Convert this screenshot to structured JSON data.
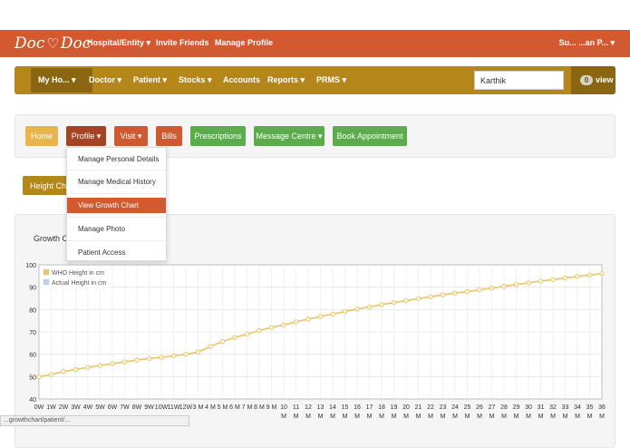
{
  "brand": {
    "logo_text": "DocDoc",
    "logo_left": "Doc",
    "logo_right": "Doc",
    "heart": "♡"
  },
  "topbar": {
    "links": [
      {
        "label": "Hospital/Entity ▾"
      },
      {
        "label": "Invite Friends"
      },
      {
        "label": "Manage Profile"
      }
    ],
    "user_label": "Su... ...an P... ▾",
    "color": "#d35a30"
  },
  "navbar": {
    "items": [
      {
        "label": "My Ho... ▾"
      },
      {
        "label": "Doctor ▾"
      },
      {
        "label": "Patient ▾"
      },
      {
        "label": "Stocks ▾"
      },
      {
        "label": "Accounts"
      },
      {
        "label": "Reports ▾"
      },
      {
        "label": "PRMS ▾"
      }
    ],
    "search_value": "Karthik",
    "badge_count": "0",
    "view_label": "view",
    "color": "#b5871b"
  },
  "patient_toolbar": {
    "buttons": [
      {
        "label": "Home"
      },
      {
        "label": "Profile ▾"
      },
      {
        "label": "Visit ▾"
      },
      {
        "label": "Bills"
      },
      {
        "label": "Prescriptions"
      },
      {
        "label": "Message Centre ▾"
      },
      {
        "label": "Book Appointment"
      }
    ]
  },
  "profile_menu": {
    "items": [
      {
        "label": "Manage Personal Details"
      },
      {
        "label": "Manage Medical History"
      },
      {
        "label": "View Growth Chart"
      },
      {
        "label": "Manage Photo"
      },
      {
        "label": "Patient Access"
      }
    ],
    "active_index": 2
  },
  "height_button": {
    "label": "Height Chart"
  },
  "chart_section": {
    "heading": "Growth Chart"
  },
  "status_url": "...growthchart/patient/...",
  "chart_data": {
    "type": "line",
    "title": "",
    "xlabel": "",
    "ylabel": "",
    "ylim": [
      40,
      100
    ],
    "yticks": [
      40,
      50,
      60,
      70,
      80,
      90,
      100
    ],
    "legend_position": "top-left",
    "grid": true,
    "x_tick_labels": [
      {
        "top": "0W",
        "bottom": ""
      },
      {
        "top": "1W",
        "bottom": ""
      },
      {
        "top": "2W",
        "bottom": ""
      },
      {
        "top": "3W",
        "bottom": ""
      },
      {
        "top": "4W",
        "bottom": ""
      },
      {
        "top": "5W",
        "bottom": ""
      },
      {
        "top": "6W",
        "bottom": ""
      },
      {
        "top": "7W",
        "bottom": ""
      },
      {
        "top": "8W",
        "bottom": ""
      },
      {
        "top": "9W",
        "bottom": ""
      },
      {
        "top": "10W",
        "bottom": ""
      },
      {
        "top": "11W",
        "bottom": ""
      },
      {
        "top": "12W",
        "bottom": ""
      },
      {
        "top": "3 M",
        "bottom": ""
      },
      {
        "top": "4 M",
        "bottom": ""
      },
      {
        "top": "5 M",
        "bottom": ""
      },
      {
        "top": "6 M",
        "bottom": ""
      },
      {
        "top": "7 M",
        "bottom": ""
      },
      {
        "top": "8 M",
        "bottom": ""
      },
      {
        "top": "9 M",
        "bottom": ""
      },
      {
        "top": "10",
        "bottom": "M"
      },
      {
        "top": "11",
        "bottom": "M"
      },
      {
        "top": "12",
        "bottom": "M"
      },
      {
        "top": "13",
        "bottom": "M"
      },
      {
        "top": "14",
        "bottom": "M"
      },
      {
        "top": "15",
        "bottom": "M"
      },
      {
        "top": "16",
        "bottom": "M"
      },
      {
        "top": "17",
        "bottom": "M"
      },
      {
        "top": "18",
        "bottom": "M"
      },
      {
        "top": "19",
        "bottom": "M"
      },
      {
        "top": "20",
        "bottom": "M"
      },
      {
        "top": "21",
        "bottom": "M"
      },
      {
        "top": "22",
        "bottom": "M"
      },
      {
        "top": "23",
        "bottom": "M"
      },
      {
        "top": "24",
        "bottom": "M"
      },
      {
        "top": "25",
        "bottom": "M"
      },
      {
        "top": "26",
        "bottom": "M"
      },
      {
        "top": "27",
        "bottom": "M"
      },
      {
        "top": "28",
        "bottom": "M"
      },
      {
        "top": "29",
        "bottom": "M"
      },
      {
        "top": "30",
        "bottom": "M"
      },
      {
        "top": "31",
        "bottom": "M"
      },
      {
        "top": "32",
        "bottom": "M"
      },
      {
        "top": "33",
        "bottom": "M"
      },
      {
        "top": "34",
        "bottom": "M"
      },
      {
        "top": "35",
        "bottom": "M"
      },
      {
        "top": "36",
        "bottom": "M"
      }
    ],
    "series": [
      {
        "name": "WHO Height in cm",
        "color": "#e9c46a",
        "values": [
          49.9,
          51.0,
          52.3,
          53.2,
          54.1,
          55.0,
          55.8,
          56.6,
          57.4,
          58.1,
          58.6,
          59.3,
          60.0,
          61.0,
          63.5,
          65.7,
          67.5,
          69.0,
          70.6,
          72.0,
          73.1,
          74.5,
          75.7,
          76.9,
          78.0,
          79.1,
          80.2,
          81.2,
          82.2,
          83.1,
          84.0,
          84.9,
          85.7,
          86.6,
          87.4,
          88.0,
          88.8,
          89.6,
          90.4,
          91.2,
          91.9,
          92.7,
          93.4,
          94.1,
          94.8,
          95.4,
          96.1
        ]
      },
      {
        "name": "Actual Height in cm",
        "color": "#b9d3ee",
        "values": []
      }
    ]
  }
}
